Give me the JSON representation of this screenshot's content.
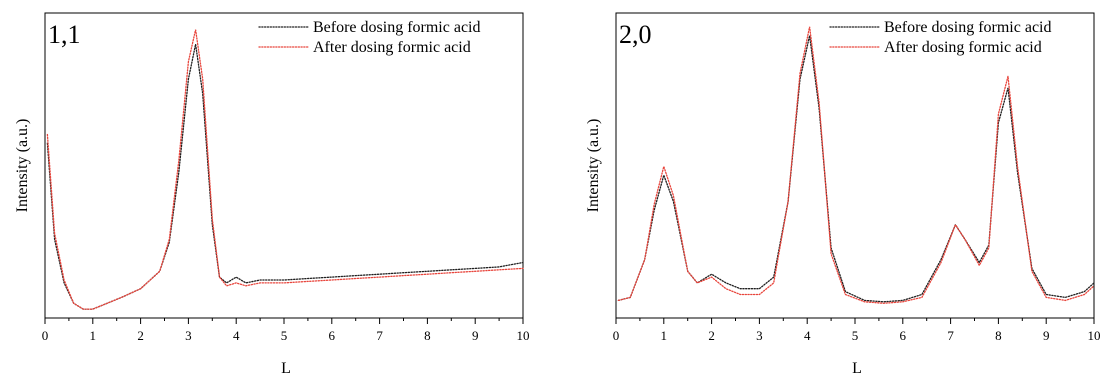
{
  "chart_data": [
    {
      "type": "line",
      "panel_label": "1,1",
      "xlabel": "L",
      "ylabel": "Intensity (a.u.)",
      "xlim": [
        0,
        10
      ],
      "ylim": [
        0,
        100
      ],
      "y_ticks_shown": false,
      "x_ticks": [
        "0",
        "1",
        "2",
        "3",
        "4",
        "5",
        "6",
        "7",
        "8",
        "9",
        "10"
      ],
      "legend_position": "top-right",
      "series": [
        {
          "name": "Before dosing formic acid",
          "color": "#1f1f1f",
          "style": "dotted",
          "x": [
            0.05,
            0.2,
            0.4,
            0.6,
            0.8,
            1.0,
            1.3,
            1.6,
            2.0,
            2.4,
            2.6,
            2.8,
            3.0,
            3.15,
            3.3,
            3.5,
            3.65,
            3.8,
            4.0,
            4.2,
            4.5,
            5.0,
            5.5,
            6.0,
            6.5,
            7.0,
            7.5,
            8.0,
            8.5,
            9.0,
            9.5,
            10.0
          ],
          "y": [
            58,
            25,
            10,
            3,
            1,
            1,
            3,
            5,
            8,
            14,
            24,
            48,
            80,
            92,
            75,
            30,
            12,
            10,
            12,
            10,
            11,
            11,
            11.5,
            12,
            12.5,
            13,
            13.5,
            14,
            14.5,
            15,
            15.5,
            17
          ]
        },
        {
          "name": "After dosing formic acid",
          "color": "#e8453c",
          "style": "dotted",
          "x": [
            0.05,
            0.2,
            0.4,
            0.6,
            0.8,
            1.0,
            1.3,
            1.6,
            2.0,
            2.4,
            2.6,
            2.8,
            3.0,
            3.15,
            3.3,
            3.5,
            3.65,
            3.8,
            4.0,
            4.2,
            4.5,
            5.0,
            5.5,
            6.0,
            6.5,
            7.0,
            7.5,
            8.0,
            8.5,
            9.0,
            9.5,
            10.0
          ],
          "y": [
            61,
            27,
            11,
            3,
            1,
            1,
            3,
            5,
            8,
            14,
            25,
            52,
            86,
            97,
            80,
            32,
            12,
            9,
            10,
            9,
            10,
            10,
            10.5,
            11,
            11.5,
            12,
            12.5,
            13,
            13.5,
            14,
            14.5,
            15
          ]
        }
      ]
    },
    {
      "type": "line",
      "panel_label": "2,0",
      "xlabel": "L",
      "ylabel": "Intensity (a.u.)",
      "xlim": [
        0,
        10
      ],
      "ylim": [
        0,
        100
      ],
      "y_ticks_shown": false,
      "x_ticks": [
        "0",
        "1",
        "2",
        "3",
        "4",
        "5",
        "6",
        "7",
        "8",
        "9",
        "10"
      ],
      "legend_position": "top-right",
      "series": [
        {
          "name": "Before dosing formic acid",
          "color": "#1f1f1f",
          "style": "dotted",
          "x": [
            0.05,
            0.3,
            0.6,
            0.8,
            1.0,
            1.2,
            1.5,
            1.7,
            2.0,
            2.3,
            2.6,
            3.0,
            3.3,
            3.6,
            3.85,
            4.05,
            4.25,
            4.5,
            4.8,
            5.2,
            5.6,
            6.0,
            6.4,
            6.8,
            7.1,
            7.3,
            7.6,
            7.8,
            8.0,
            8.2,
            8.4,
            8.7,
            9.0,
            9.4,
            9.8,
            10.0
          ],
          "y": [
            4,
            5,
            18,
            35,
            47,
            38,
            14,
            10,
            13,
            10,
            8,
            8,
            12,
            38,
            80,
            95,
            70,
            22,
            7,
            4,
            3.5,
            4,
            6,
            18,
            30,
            25,
            17,
            23,
            65,
            77,
            48,
            15,
            6,
            5,
            7,
            10
          ]
        },
        {
          "name": "After dosing formic acid",
          "color": "#e8453c",
          "style": "dotted",
          "x": [
            0.05,
            0.3,
            0.6,
            0.8,
            1.0,
            1.2,
            1.5,
            1.7,
            2.0,
            2.3,
            2.6,
            3.0,
            3.3,
            3.6,
            3.85,
            4.05,
            4.25,
            4.5,
            4.8,
            5.2,
            5.6,
            6.0,
            6.4,
            6.8,
            7.1,
            7.3,
            7.6,
            7.8,
            8.0,
            8.2,
            8.4,
            8.7,
            9.0,
            9.4,
            9.8,
            10.0
          ],
          "y": [
            4,
            5,
            18,
            37,
            50,
            40,
            14,
            10,
            12,
            8,
            6,
            6,
            10,
            38,
            82,
            98,
            72,
            20,
            6,
            3.5,
            3,
            3.5,
            5,
            17,
            30,
            25,
            16,
            22,
            68,
            81,
            50,
            14,
            5,
            4,
            6,
            9
          ]
        }
      ]
    }
  ]
}
